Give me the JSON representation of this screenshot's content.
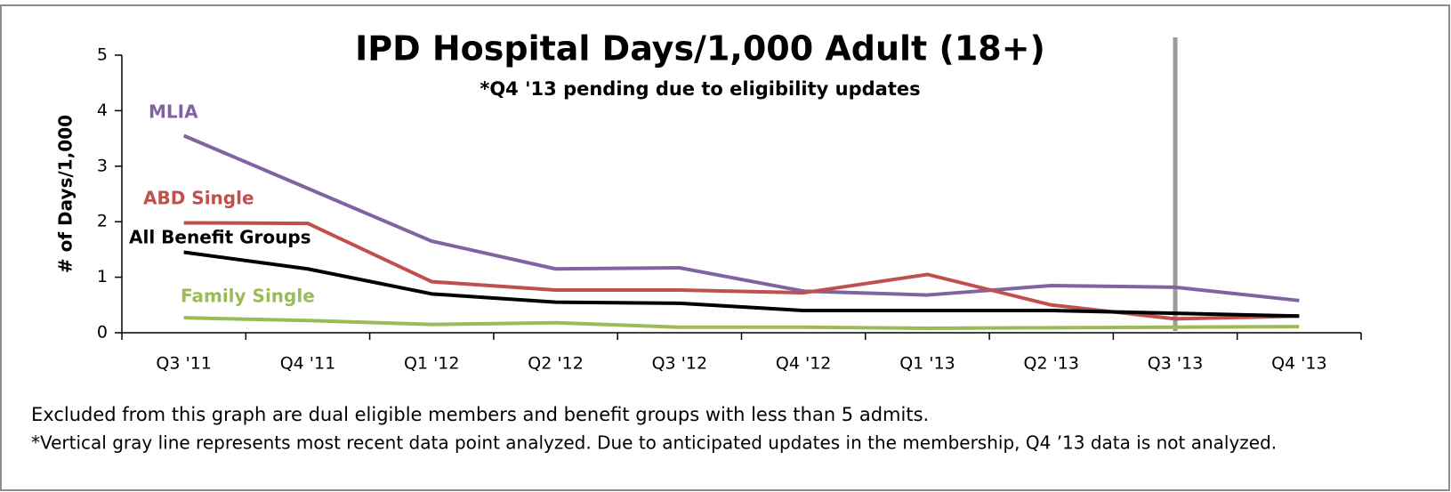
{
  "chart_data": {
    "type": "line",
    "title": "IPD Hospital Days/1,000 Adult (18+)",
    "subtitle": "*Q4 '13 pending due to eligibility updates",
    "y_label": "# of Days/1,000",
    "categories": [
      "Q3 '11",
      "Q4 '11",
      "Q1 '12",
      "Q2 '12",
      "Q3 '12",
      "Q4 '12",
      "Q1 '13",
      "Q2 '13",
      "Q3 '13",
      "Q4 '13"
    ],
    "series": [
      {
        "name": "MLIA",
        "color": "#8064a2",
        "values": [
          3.55,
          2.6,
          1.65,
          1.15,
          1.17,
          0.75,
          0.68,
          0.85,
          0.82,
          0.58
        ]
      },
      {
        "name": "ABD Single",
        "color": "#c0504d",
        "values": [
          1.98,
          1.97,
          0.92,
          0.77,
          0.77,
          0.72,
          1.05,
          0.5,
          0.25,
          0.3
        ]
      },
      {
        "name": "All Benefit Groups",
        "color": "#000000",
        "values": [
          1.45,
          1.15,
          0.7,
          0.55,
          0.53,
          0.4,
          0.4,
          0.4,
          0.35,
          0.3
        ]
      },
      {
        "name": "Family Single",
        "color": "#9bbb59",
        "values": [
          0.27,
          0.22,
          0.15,
          0.18,
          0.1,
          0.1,
          0.08,
          0.09,
          0.1,
          0.11
        ]
      }
    ],
    "ylim": [
      0,
      5
    ],
    "yticks": [
      0,
      1,
      2,
      3,
      4,
      5
    ],
    "grid": false,
    "legend": "inline",
    "reference_line": "Q3 '13",
    "notes": [
      "Excluded from this graph are dual eligible members and benefit groups with less than 5 admits.",
      "*Vertical gray line represents most recent data point analyzed. Due to anticipated updates in the membership, Q4 ’13 data is not analyzed."
    ]
  }
}
